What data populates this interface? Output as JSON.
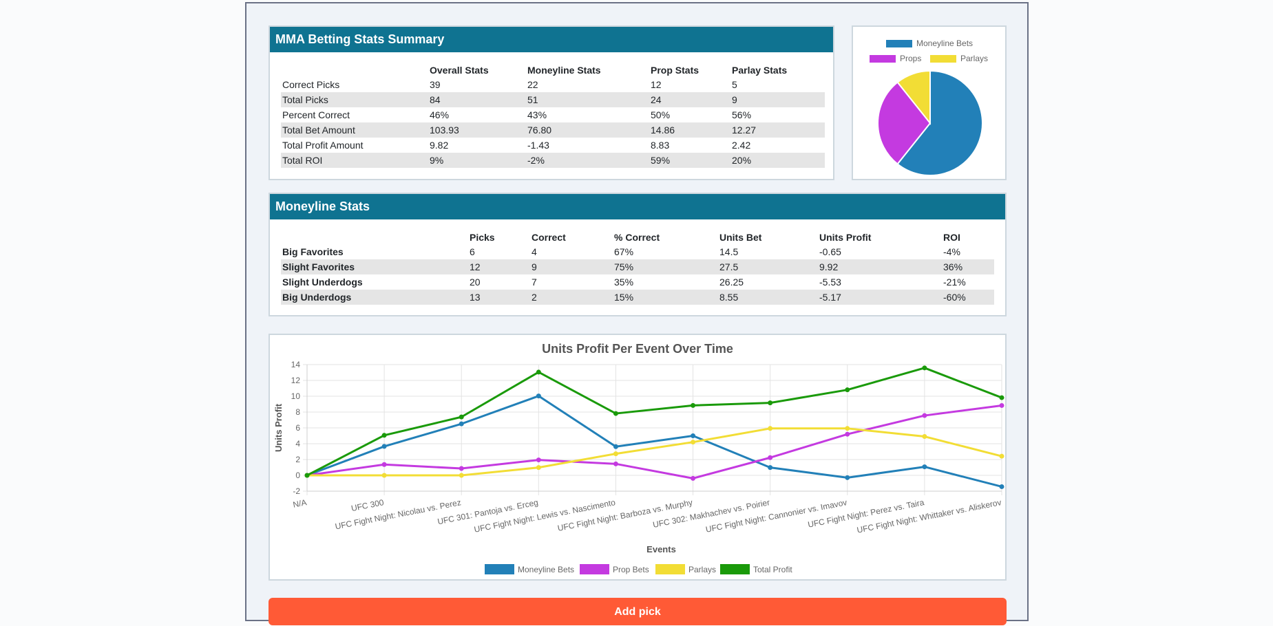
{
  "summary": {
    "title": "MMA Betting Stats Summary",
    "columns": [
      "",
      "Overall Stats",
      "Moneyline Stats",
      "Prop Stats",
      "Parlay Stats"
    ],
    "rows": [
      {
        "label": "Correct Picks",
        "values": [
          "39",
          "22",
          "12",
          "5"
        ]
      },
      {
        "label": "Total Picks",
        "values": [
          "84",
          "51",
          "24",
          "9"
        ]
      },
      {
        "label": "Percent Correct",
        "values": [
          "46%",
          "43%",
          "50%",
          "56%"
        ]
      },
      {
        "label": "Total Bet Amount",
        "values": [
          "103.93",
          "76.80",
          "14.86",
          "12.27"
        ]
      },
      {
        "label": "Total Profit Amount",
        "values": [
          "9.82",
          "-1.43",
          "8.83",
          "2.42"
        ]
      },
      {
        "label": "Total ROI",
        "values": [
          "9%",
          "-2%",
          "59%",
          "20%"
        ]
      }
    ]
  },
  "pie": {
    "legend": [
      {
        "label": "Moneyline Bets",
        "color": "#2280b8"
      },
      {
        "label": "Props",
        "color": "#c43ae0"
      },
      {
        "label": "Parlays",
        "color": "#f2dd35"
      }
    ],
    "values": [
      51,
      24,
      9
    ]
  },
  "moneyline": {
    "title": "Moneyline Stats",
    "columns": [
      "",
      "Picks",
      "Correct",
      "% Correct",
      "Units Bet",
      "Units Profit",
      "ROI"
    ],
    "rows": [
      {
        "label": "Big Favorites",
        "values": [
          "6",
          "4",
          "67%",
          "14.5",
          "-0.65",
          "-4%"
        ]
      },
      {
        "label": "Slight Favorites",
        "values": [
          "12",
          "9",
          "75%",
          "27.5",
          "9.92",
          "36%"
        ]
      },
      {
        "label": "Slight Underdogs",
        "values": [
          "20",
          "7",
          "35%",
          "26.25",
          "-5.53",
          "-21%"
        ]
      },
      {
        "label": "Big Underdogs",
        "values": [
          "13",
          "2",
          "15%",
          "8.55",
          "-5.17",
          "-60%"
        ]
      }
    ]
  },
  "chart_data": {
    "type": "line",
    "title": "Units Profit Per Event Over Time",
    "xlabel": "Events",
    "ylabel": "Units Profit",
    "ylim": [
      -2,
      14
    ],
    "yticks": [
      -2,
      0,
      2,
      4,
      6,
      8,
      10,
      12,
      14
    ],
    "grid": true,
    "legend_position": "bottom",
    "x": [
      "N/A",
      "UFC 300",
      "UFC Fight Night: Nicolau vs. Perez",
      "UFC 301: Pantoja vs. Erceg",
      "UFC Fight Night: Lewis vs. Nascimento",
      "UFC Fight Night: Barboza vs. Murphy",
      "UFC 302: Makhachev vs. Poirier",
      "UFC Fight Night: Cannonier vs. Imavov",
      "UFC Fight Night: Perez vs. Taira",
      "UFC Fight Night: Whittaker vs. Aliskerov"
    ],
    "series": [
      {
        "name": "Moneyline Bets",
        "color": "#2280b8",
        "values": [
          0,
          3.66,
          6.51,
          10.03,
          3.63,
          5.0,
          0.99,
          -0.29,
          1.08,
          -1.43
        ]
      },
      {
        "name": "Prop Bets",
        "color": "#c43ae0",
        "values": [
          0,
          1.37,
          0.87,
          1.95,
          1.45,
          -0.38,
          2.24,
          5.2,
          7.56,
          8.83
        ]
      },
      {
        "name": "Parlays",
        "color": "#f2dd35",
        "values": [
          0,
          0,
          0,
          0.99,
          2.73,
          4.2,
          5.93,
          5.93,
          4.91,
          2.42
        ]
      },
      {
        "name": "Total Profit",
        "color": "#1a9a0a",
        "values": [
          0,
          5.06,
          7.38,
          13.05,
          7.82,
          8.84,
          9.16,
          10.81,
          13.58,
          9.82
        ]
      }
    ]
  },
  "actions": {
    "add_pick_label": "Add pick"
  }
}
